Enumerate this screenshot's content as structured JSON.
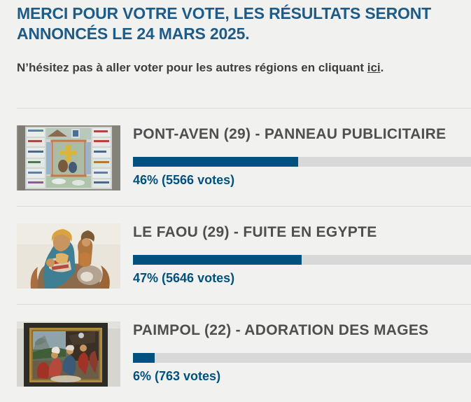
{
  "header": {
    "title": "MERCI POUR VOTRE VOTE, LES RÉSULTATS SERONT ANNONCÉS LE 24 MARS 2025.",
    "subtitle_prefix": "N’hésitez pas à aller voter pour les autres régions en cliquant ",
    "link_text": "ici",
    "subtitle_suffix": "."
  },
  "colors": {
    "accent_blue": "#00517e",
    "title_blue": "#1e5c87",
    "text_gray": "#3e3e3e",
    "item_title_gray": "#4f4f4f",
    "bar_track": "#d8d8d8",
    "divider": "#dcdcdc",
    "page_background": "#f1f1ef"
  },
  "results": [
    {
      "title": "PONT-AVEN (29) - PANNEAU PUBLICITAIRE",
      "percent": 46,
      "votes": 5566,
      "votes_label": "46% (5566 votes)",
      "thumbnail": "ceramic-advertising-panel-photo"
    },
    {
      "title": "LE FAOU (29) - FUITE EN EGYPTE",
      "percent": 47,
      "votes": 5646,
      "votes_label": "47% (5646 votes)",
      "thumbnail": "polychrome-wood-sculpture-photo"
    },
    {
      "title": "PAIMPOL (22) - ADORATION DES MAGES",
      "percent": 6,
      "votes": 763,
      "votes_label": "6% (763 votes)",
      "thumbnail": "framed-painting-photo"
    }
  ]
}
